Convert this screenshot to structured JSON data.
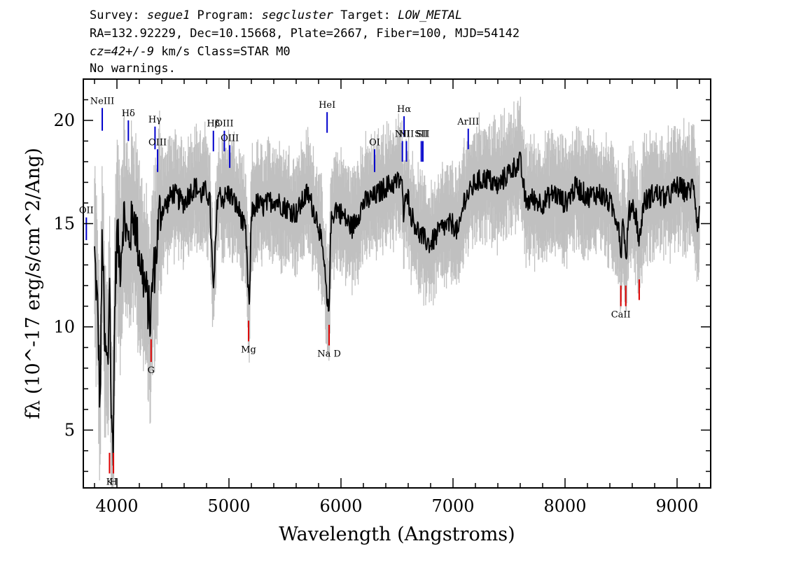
{
  "header": {
    "line1": {
      "survey_label": "Survey: ",
      "survey": "segue1",
      "program_label": " Program: ",
      "program": "segcluster",
      "target_label": " Target: ",
      "target": "LOW_METAL"
    },
    "line2": "RA=132.92229, Dec=10.15668, Plate=2667, Fiber=100, MJD=54142",
    "line3": {
      "cz": "cz=42+/-9",
      "rest": " km/s Class=STAR M0"
    },
    "line4": "No warnings."
  },
  "colors": {
    "flux": "#000000",
    "error_band": "#c0c0c0",
    "emission_marker": "#0000cc",
    "absorption_marker": "#dd0000"
  },
  "chart_data": {
    "type": "line",
    "title": "",
    "xlabel": "Wavelength (Angstroms)",
    "ylabel": "fλ (10^-17 erg/s/cm^2/Ang)",
    "xlim": [
      3700,
      9300
    ],
    "ylim": [
      2.2,
      22
    ],
    "x_ticks": [
      4000,
      5000,
      6000,
      7000,
      8000,
      9000
    ],
    "y_ticks": [
      5,
      10,
      15,
      20
    ],
    "grid": false,
    "series": [
      {
        "role": "flux",
        "x": [
          3800,
          3830,
          3850,
          3870,
          3890,
          3920,
          3935,
          3950,
          3968,
          3980,
          4000,
          4030,
          4060,
          4100,
          4150,
          4200,
          4250,
          4280,
          4300,
          4320,
          4340,
          4380,
          4450,
          4500,
          4550,
          4600,
          4650,
          4700,
          4750,
          4800,
          4830,
          4861,
          4900,
          4950,
          5000,
          5050,
          5100,
          5150,
          5170,
          5184,
          5200,
          5250,
          5300,
          5400,
          5500,
          5600,
          5700,
          5800,
          5850,
          5880,
          5893,
          5910,
          5950,
          6000,
          6100,
          6200,
          6300,
          6400,
          6500,
          6540,
          6563,
          6580,
          6620,
          6700,
          6750,
          6800,
          6850,
          6900,
          7000,
          7050,
          7100,
          7150,
          7200,
          7300,
          7400,
          7500,
          7600,
          7650,
          7700,
          7800,
          7900,
          8000,
          8100,
          8200,
          8300,
          8400,
          8480,
          8498,
          8520,
          8542,
          8570,
          8600,
          8640,
          8662,
          8700,
          8800,
          8900,
          9000,
          9100,
          9150,
          9180,
          9200
        ],
        "y": [
          13.5,
          10.5,
          6.0,
          15.0,
          9.0,
          8.0,
          13.0,
          5.0,
          4.5,
          11.0,
          14.5,
          13.0,
          15.5,
          14.0,
          15.5,
          13.5,
          12.0,
          11.0,
          10.2,
          12.5,
          13.0,
          15.5,
          16.0,
          16.5,
          16.2,
          16.0,
          16.5,
          16.8,
          16.4,
          16.6,
          16.0,
          11.5,
          16.5,
          16.2,
          16.5,
          16.0,
          15.5,
          14.5,
          12.0,
          11.0,
          15.5,
          16.0,
          15.8,
          16.2,
          15.8,
          15.5,
          16.5,
          15.0,
          13.0,
          10.8,
          10.9,
          15.0,
          15.8,
          15.5,
          14.8,
          16.0,
          16.3,
          16.8,
          17.0,
          17.2,
          15.0,
          17.0,
          15.5,
          14.5,
          14.2,
          14.0,
          14.4,
          14.8,
          15.0,
          14.5,
          16.2,
          16.5,
          17.0,
          17.2,
          16.8,
          17.5,
          18.0,
          16.0,
          16.2,
          16.0,
          16.5,
          16.0,
          16.8,
          16.3,
          16.5,
          16.0,
          15.0,
          13.5,
          15.5,
          13.0,
          15.5,
          16.0,
          15.2,
          14.0,
          16.0,
          16.5,
          16.2,
          16.8,
          16.5,
          17.0,
          15.0,
          15.5
        ]
      }
    ],
    "annotations": [
      {
        "label": "OII",
        "x": 3727,
        "y_top": 15.3,
        "y_bottom": 14.2,
        "kind": "emission"
      },
      {
        "label": "NeIII",
        "x": 3869,
        "y_top": 20.6,
        "y_bottom": 19.5,
        "kind": "emission"
      },
      {
        "label": "Hδ",
        "x": 4102,
        "y_top": 20.0,
        "y_bottom": 19.0,
        "kind": "emission"
      },
      {
        "label": "Hγ",
        "x": 4340,
        "y_top": 19.7,
        "y_bottom": 18.6,
        "kind": "emission"
      },
      {
        "label": "OIII",
        "x": 4363,
        "y_top": 18.6,
        "y_bottom": 17.5,
        "kind": "emission"
      },
      {
        "label": "Hβ",
        "x": 4861,
        "y_top": 19.5,
        "y_bottom": 18.5,
        "kind": "emission"
      },
      {
        "label": "OIII",
        "x": 4959,
        "y_top": 19.5,
        "y_bottom": 18.5,
        "kind": "emission"
      },
      {
        "label": "OIII",
        "x": 5007,
        "y_top": 18.8,
        "y_bottom": 17.7,
        "kind": "emission"
      },
      {
        "label": "HeI",
        "x": 5876,
        "y_top": 20.4,
        "y_bottom": 19.4,
        "kind": "emission"
      },
      {
        "label": "OI",
        "x": 6300,
        "y_top": 18.6,
        "y_bottom": 17.5,
        "kind": "emission"
      },
      {
        "label": "NII",
        "x": 6548,
        "y_top": 19.0,
        "y_bottom": 18.0,
        "kind": "emission"
      },
      {
        "label": "Hα",
        "x": 6563,
        "y_top": 20.2,
        "y_bottom": 19.2,
        "kind": "emission"
      },
      {
        "label": "NII",
        "x": 6584,
        "y_top": 19.0,
        "y_bottom": 18.0,
        "kind": "emission"
      },
      {
        "label": "SII",
        "x": 6717,
        "y_top": 19.0,
        "y_bottom": 18.0,
        "kind": "emission"
      },
      {
        "label": "SII",
        "x": 6731,
        "y_top": 19.0,
        "y_bottom": 18.0,
        "kind": "emission"
      },
      {
        "label": "ArIII",
        "x": 7136,
        "y_top": 19.6,
        "y_bottom": 18.6,
        "kind": "emission"
      },
      {
        "label": "K",
        "x": 3934,
        "y_top": 3.9,
        "y_bottom": 2.9,
        "kind": "absorption"
      },
      {
        "label": "H",
        "x": 3969,
        "y_top": 3.9,
        "y_bottom": 2.9,
        "kind": "absorption"
      },
      {
        "label": "G",
        "x": 4305,
        "y_top": 9.4,
        "y_bottom": 8.3,
        "kind": "absorption"
      },
      {
        "label": "Mg",
        "x": 5175,
        "y_top": 10.3,
        "y_bottom": 9.3,
        "kind": "absorption"
      },
      {
        "label": "Na D",
        "x": 5894,
        "y_top": 10.1,
        "y_bottom": 9.1,
        "kind": "absorption"
      },
      {
        "label": "CaII",
        "x": 8498,
        "y_top": 12.0,
        "y_bottom": 11.0,
        "kind": "absorption"
      },
      {
        "label": "CaII",
        "x": 8542,
        "y_top": 12.0,
        "y_bottom": 11.0,
        "kind": "absorption"
      },
      {
        "label": "CaII",
        "x": 8662,
        "y_top": 12.3,
        "y_bottom": 11.3,
        "kind": "absorption"
      }
    ]
  }
}
